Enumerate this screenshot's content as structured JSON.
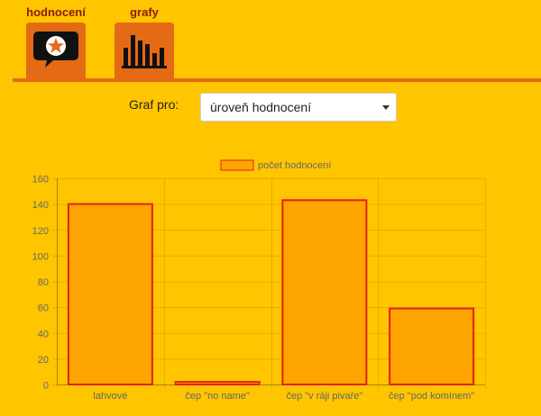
{
  "tabs": [
    {
      "label": "hodnocení",
      "icon": "speech-bubble-star-icon"
    },
    {
      "label": "grafy",
      "icon": "bar-chart-icon"
    }
  ],
  "form": {
    "label": "Graf pro:",
    "selected": "úroveň hodnocení"
  },
  "colors": {
    "background": "#ffc500",
    "accent": "#e56a16",
    "tab_text": "#8c1a06",
    "bar_fill": "#ffa500",
    "bar_border": "#e3201c"
  },
  "chart_data": {
    "type": "bar",
    "categories": [
      "lahvové",
      "čep \"no name\"",
      "čep \"v ráji pivaře\"",
      "čep \"pod komínem\""
    ],
    "series": [
      {
        "name": "počet hodnocení",
        "values": [
          140,
          2,
          143,
          59
        ]
      }
    ],
    "ylim": [
      0,
      160
    ],
    "yticks": [
      0,
      20,
      40,
      60,
      80,
      100,
      120,
      140,
      160
    ],
    "grid": true,
    "legend": "top-center"
  }
}
